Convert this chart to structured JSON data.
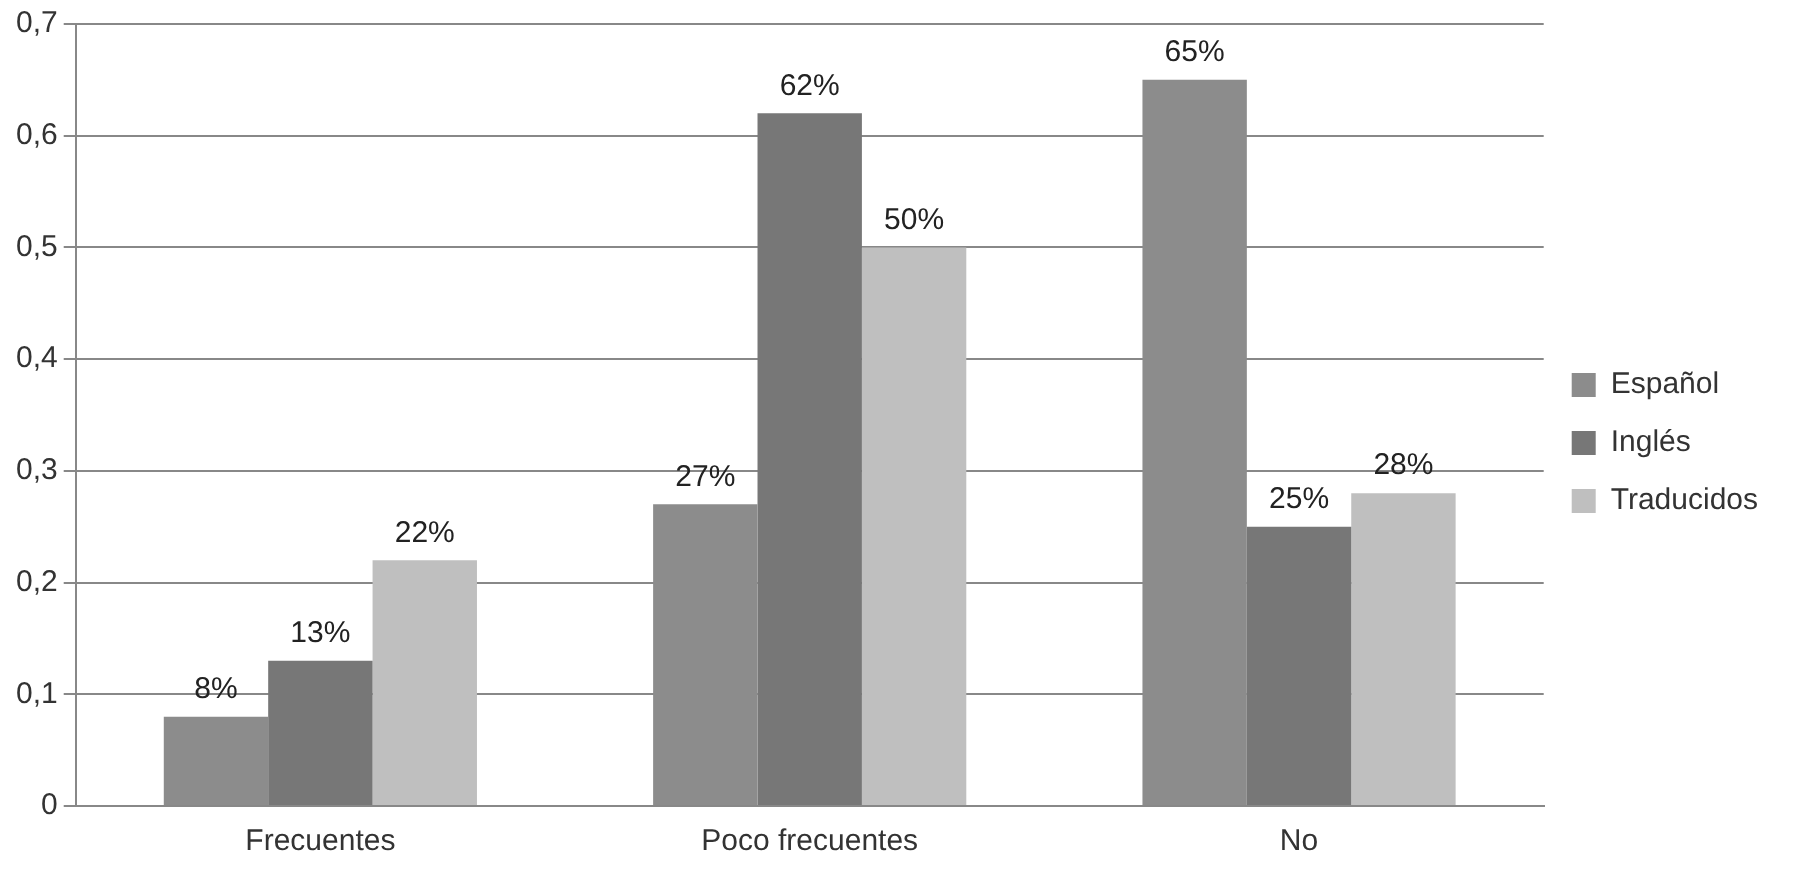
{
  "chart_data": {
    "type": "bar",
    "categories": [
      "Frecuentes",
      "Poco frecuentes",
      "No"
    ],
    "series": [
      {
        "name": "Español",
        "color": "#8c8c8c",
        "values": [
          0.08,
          0.27,
          0.65
        ],
        "value_labels": [
          "8%",
          "27%",
          "65%"
        ]
      },
      {
        "name": "Inglés",
        "color": "#777777",
        "values": [
          0.13,
          0.62,
          0.25
        ],
        "value_labels": [
          "13%",
          "62%",
          "25%"
        ]
      },
      {
        "name": "Traducidos",
        "color": "#bfbfbf",
        "values": [
          0.22,
          0.5,
          0.28
        ],
        "value_labels": [
          "22%",
          "50%",
          "28%"
        ]
      }
    ],
    "ylim": [
      0,
      0.7
    ],
    "yticks": [
      0,
      {
        "value": 0.1,
        "label": "0,1"
      },
      {
        "value": 0.2,
        "label": "0,2"
      },
      {
        "value": 0.3,
        "label": "0,3"
      },
      {
        "value": 0.4,
        "label": "0,4"
      },
      {
        "value": 0.5,
        "label": "0,5"
      },
      {
        "value": 0.6,
        "label": "0,6"
      },
      {
        "value": 0.7,
        "label": "0,7"
      }
    ],
    "grid": "y",
    "legend": "right"
  }
}
